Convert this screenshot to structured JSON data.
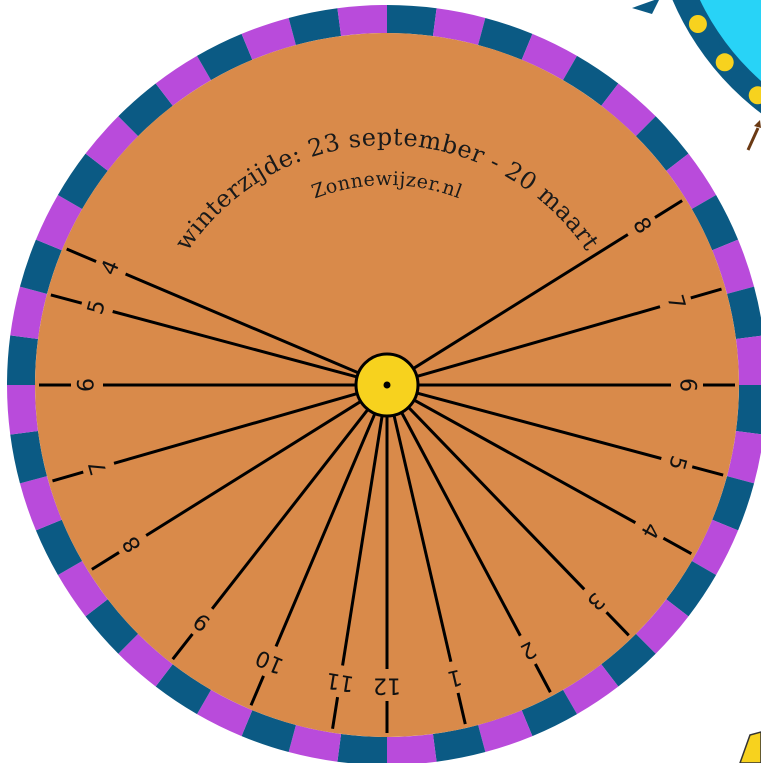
{
  "dial": {
    "title": "winterzijde: 23 september - 20 maart",
    "site": "Zonnewijzer.nl",
    "colors": {
      "face": "#D98A4A",
      "ring_a": "#0B5A84",
      "ring_b": "#B94BDB",
      "hub": "#F7D21E",
      "line": "#000000",
      "corner_cyan": "#28D3F7",
      "corner_yellow": "#F7D21E",
      "corner_brown": "#6B3A14"
    },
    "hour_lines": [
      {
        "label": "4"
      },
      {
        "label": "5"
      },
      {
        "label": "6"
      },
      {
        "label": "7"
      },
      {
        "label": "8"
      },
      {
        "label": "9"
      },
      {
        "label": "10"
      },
      {
        "label": "11"
      },
      {
        "label": "12"
      },
      {
        "label": "1"
      },
      {
        "label": "2"
      },
      {
        "label": "3"
      },
      {
        "label": "4"
      },
      {
        "label": "5"
      },
      {
        "label": "6"
      },
      {
        "label": "7"
      },
      {
        "label": "8"
      }
    ]
  }
}
